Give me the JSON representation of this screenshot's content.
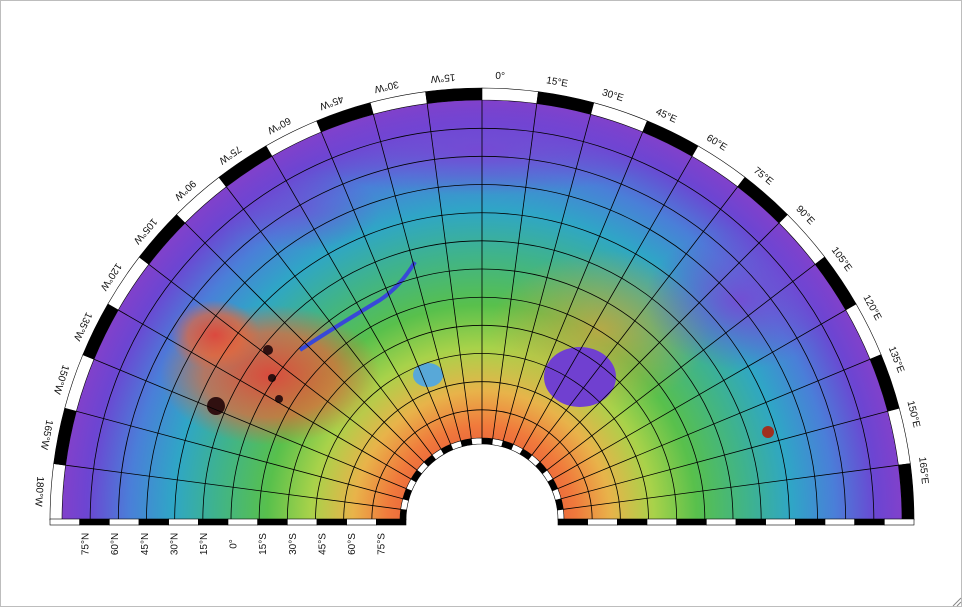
{
  "map": {
    "projection_style": "fan (half-annulus) global view",
    "colors": {
      "frame": "#bdbdbd",
      "low_elevation": "#6a3fd0",
      "mid_elevation": "#3fb84a",
      "high_elevation": "#e05040",
      "border_black": "#000000",
      "border_white": "#ffffff",
      "graticule": "#000000"
    },
    "longitude_labels": [
      "180°W",
      "165°W",
      "150°W",
      "135°W",
      "120°W",
      "105°W",
      "90°W",
      "75°W",
      "60°W",
      "45°W",
      "30°W",
      "15°W",
      "0°",
      "15°E",
      "30°E",
      "45°E",
      "60°E",
      "75°E",
      "90°E",
      "105°E",
      "120°E",
      "135°E",
      "150°E",
      "165°E"
    ],
    "latitude_labels": [
      "75°N",
      "60°N",
      "45°N",
      "30°N",
      "15°N",
      "0°",
      "15°S",
      "30°S",
      "45°S",
      "60°S",
      "75°S"
    ],
    "features": [
      "basin-icon",
      "volcano-icon",
      "canyon-icon"
    ]
  }
}
